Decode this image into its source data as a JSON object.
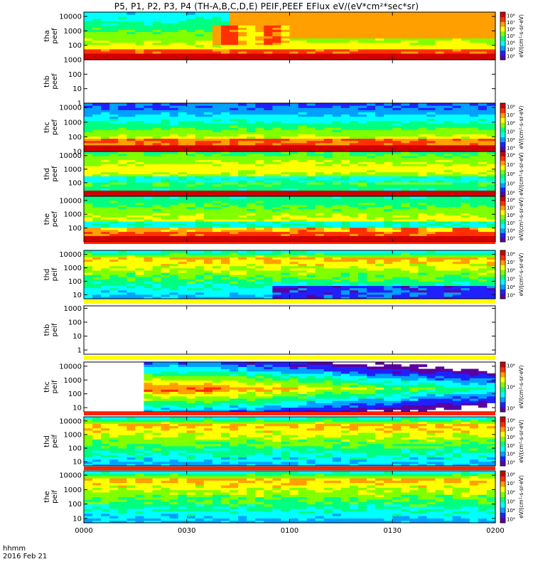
{
  "title": "P5, P1, P2, P3, P4 (TH-A,B,C,D,E) PEIF,PEEF EFlux eV/(eV*cm²*sec*sr)",
  "footer": {
    "label": "hhmm",
    "date": "2016 Feb 21"
  },
  "chart_data": {
    "type": "heatmap",
    "x_ticks": [
      "0000",
      "0030",
      "0100",
      "0130",
      "0200"
    ],
    "x_range": [
      "00:00",
      "02:00"
    ],
    "y_scale": "log",
    "panels": [
      {
        "label": [
          "tha",
          "peef"
        ],
        "yrange": [
          10,
          20000
        ],
        "yticks": [
          "10000",
          "1000",
          "100"
        ],
        "colorbar": {
          "ticks": [
            "10⁸",
            "10⁷",
            "10⁶",
            "10⁵",
            "10⁴",
            "10³",
            "10²"
          ],
          "title": "eV/(cm²-s-sr-eV)"
        },
        "pattern": "tha_peef",
        "blank": false
      },
      {
        "label": [
          "thb",
          "peef"
        ],
        "yrange": [
          1,
          1000
        ],
        "yticks": [
          "1000",
          "100",
          "10",
          "1"
        ],
        "colorbar": null,
        "pattern": "none",
        "blank": true
      },
      {
        "label": [
          "thc",
          "peef"
        ],
        "yrange": [
          10,
          20000
        ],
        "yticks": [
          "10000",
          "1000",
          "100",
          "10"
        ],
        "colorbar": {
          "ticks": [
            "10⁸",
            "10⁷",
            "10⁶",
            "10⁵",
            "10⁴",
            "10³"
          ],
          "title": "eV/(cm²-s-sr-eV)"
        },
        "pattern": "thc_peef",
        "blank": false
      },
      {
        "label": [
          "thd",
          "peef"
        ],
        "yrange": [
          10,
          20000
        ],
        "yticks": [
          "10000",
          "1000",
          "100"
        ],
        "colorbar": {
          "ticks": [
            "10⁸",
            "10⁷",
            "10⁶",
            "10⁵",
            "10⁴"
          ],
          "title": "eV/(cm²-s-sr-eV)"
        },
        "pattern": "thd_peef",
        "blank": false
      },
      {
        "label": [
          "the",
          "peef"
        ],
        "yrange": [
          10,
          20000
        ],
        "yticks": [
          "10000",
          "1000",
          "100"
        ],
        "colorbar": {
          "ticks": [
            "10⁸",
            "10⁷",
            "10⁶",
            "10⁵",
            "10⁴",
            "10³"
          ],
          "title": "eV/(cm²-s-sr-eV)"
        },
        "pattern": "the_peef",
        "blank": false
      },
      {
        "label": [
          "thd",
          "peif"
        ],
        "yrange": [
          5,
          20000
        ],
        "yticks": [
          "10000",
          "1000",
          "100",
          "10"
        ],
        "colorbar": {
          "ticks": [
            "10⁸",
            "10⁷",
            "10⁶",
            "10⁵",
            "10⁴",
            "10³"
          ],
          "title": "eV/(cm²-s-sr-eV)"
        },
        "pattern": "thd_peif",
        "blank": false
      },
      {
        "label": [
          "thb",
          "peif"
        ],
        "yrange": [
          0.5,
          1500
        ],
        "yticks": [
          "1000",
          "100",
          "10",
          "1"
        ],
        "colorbar": null,
        "pattern": "none",
        "blank": true
      },
      {
        "label": [
          "thc",
          "peif"
        ],
        "yrange": [
          5,
          20000
        ],
        "yticks": [
          "10000",
          "1000",
          "100",
          "10"
        ],
        "colorbar": {
          "ticks": [
            "10⁶",
            "10⁴",
            "10³"
          ],
          "title": "eV/(cm²-s-sr-eV)"
        },
        "pattern": "thc_peif",
        "blank": false
      },
      {
        "label": [
          "thd",
          "peif"
        ],
        "yrange": [
          5,
          20000
        ],
        "yticks": [
          "10000",
          "1000",
          "100",
          "10"
        ],
        "colorbar": {
          "ticks": [
            "10⁸",
            "10⁷",
            "10⁶",
            "10⁵",
            "10⁴",
            "10³"
          ],
          "title": "eV/(cm²-s-sr-eV)"
        },
        "pattern": "thd_peif2",
        "blank": false
      },
      {
        "label": [
          "the",
          "peif"
        ],
        "yrange": [
          5,
          20000
        ],
        "yticks": [
          "10000",
          "1000",
          "100",
          "10"
        ],
        "colorbar": {
          "ticks": [
            "10⁸",
            "10⁷",
            "10⁶",
            "10⁵",
            "10⁴",
            "10³"
          ],
          "title": "eV/(cm²-s-sr-eV)"
        },
        "pattern": "the_peif",
        "blank": false
      }
    ],
    "colormap": [
      "#5a00a0",
      "#2020ff",
      "#00a0ff",
      "#00ffff",
      "#00ff80",
      "#80ff00",
      "#ffff00",
      "#ffa000",
      "#ff3000",
      "#d00000"
    ]
  }
}
